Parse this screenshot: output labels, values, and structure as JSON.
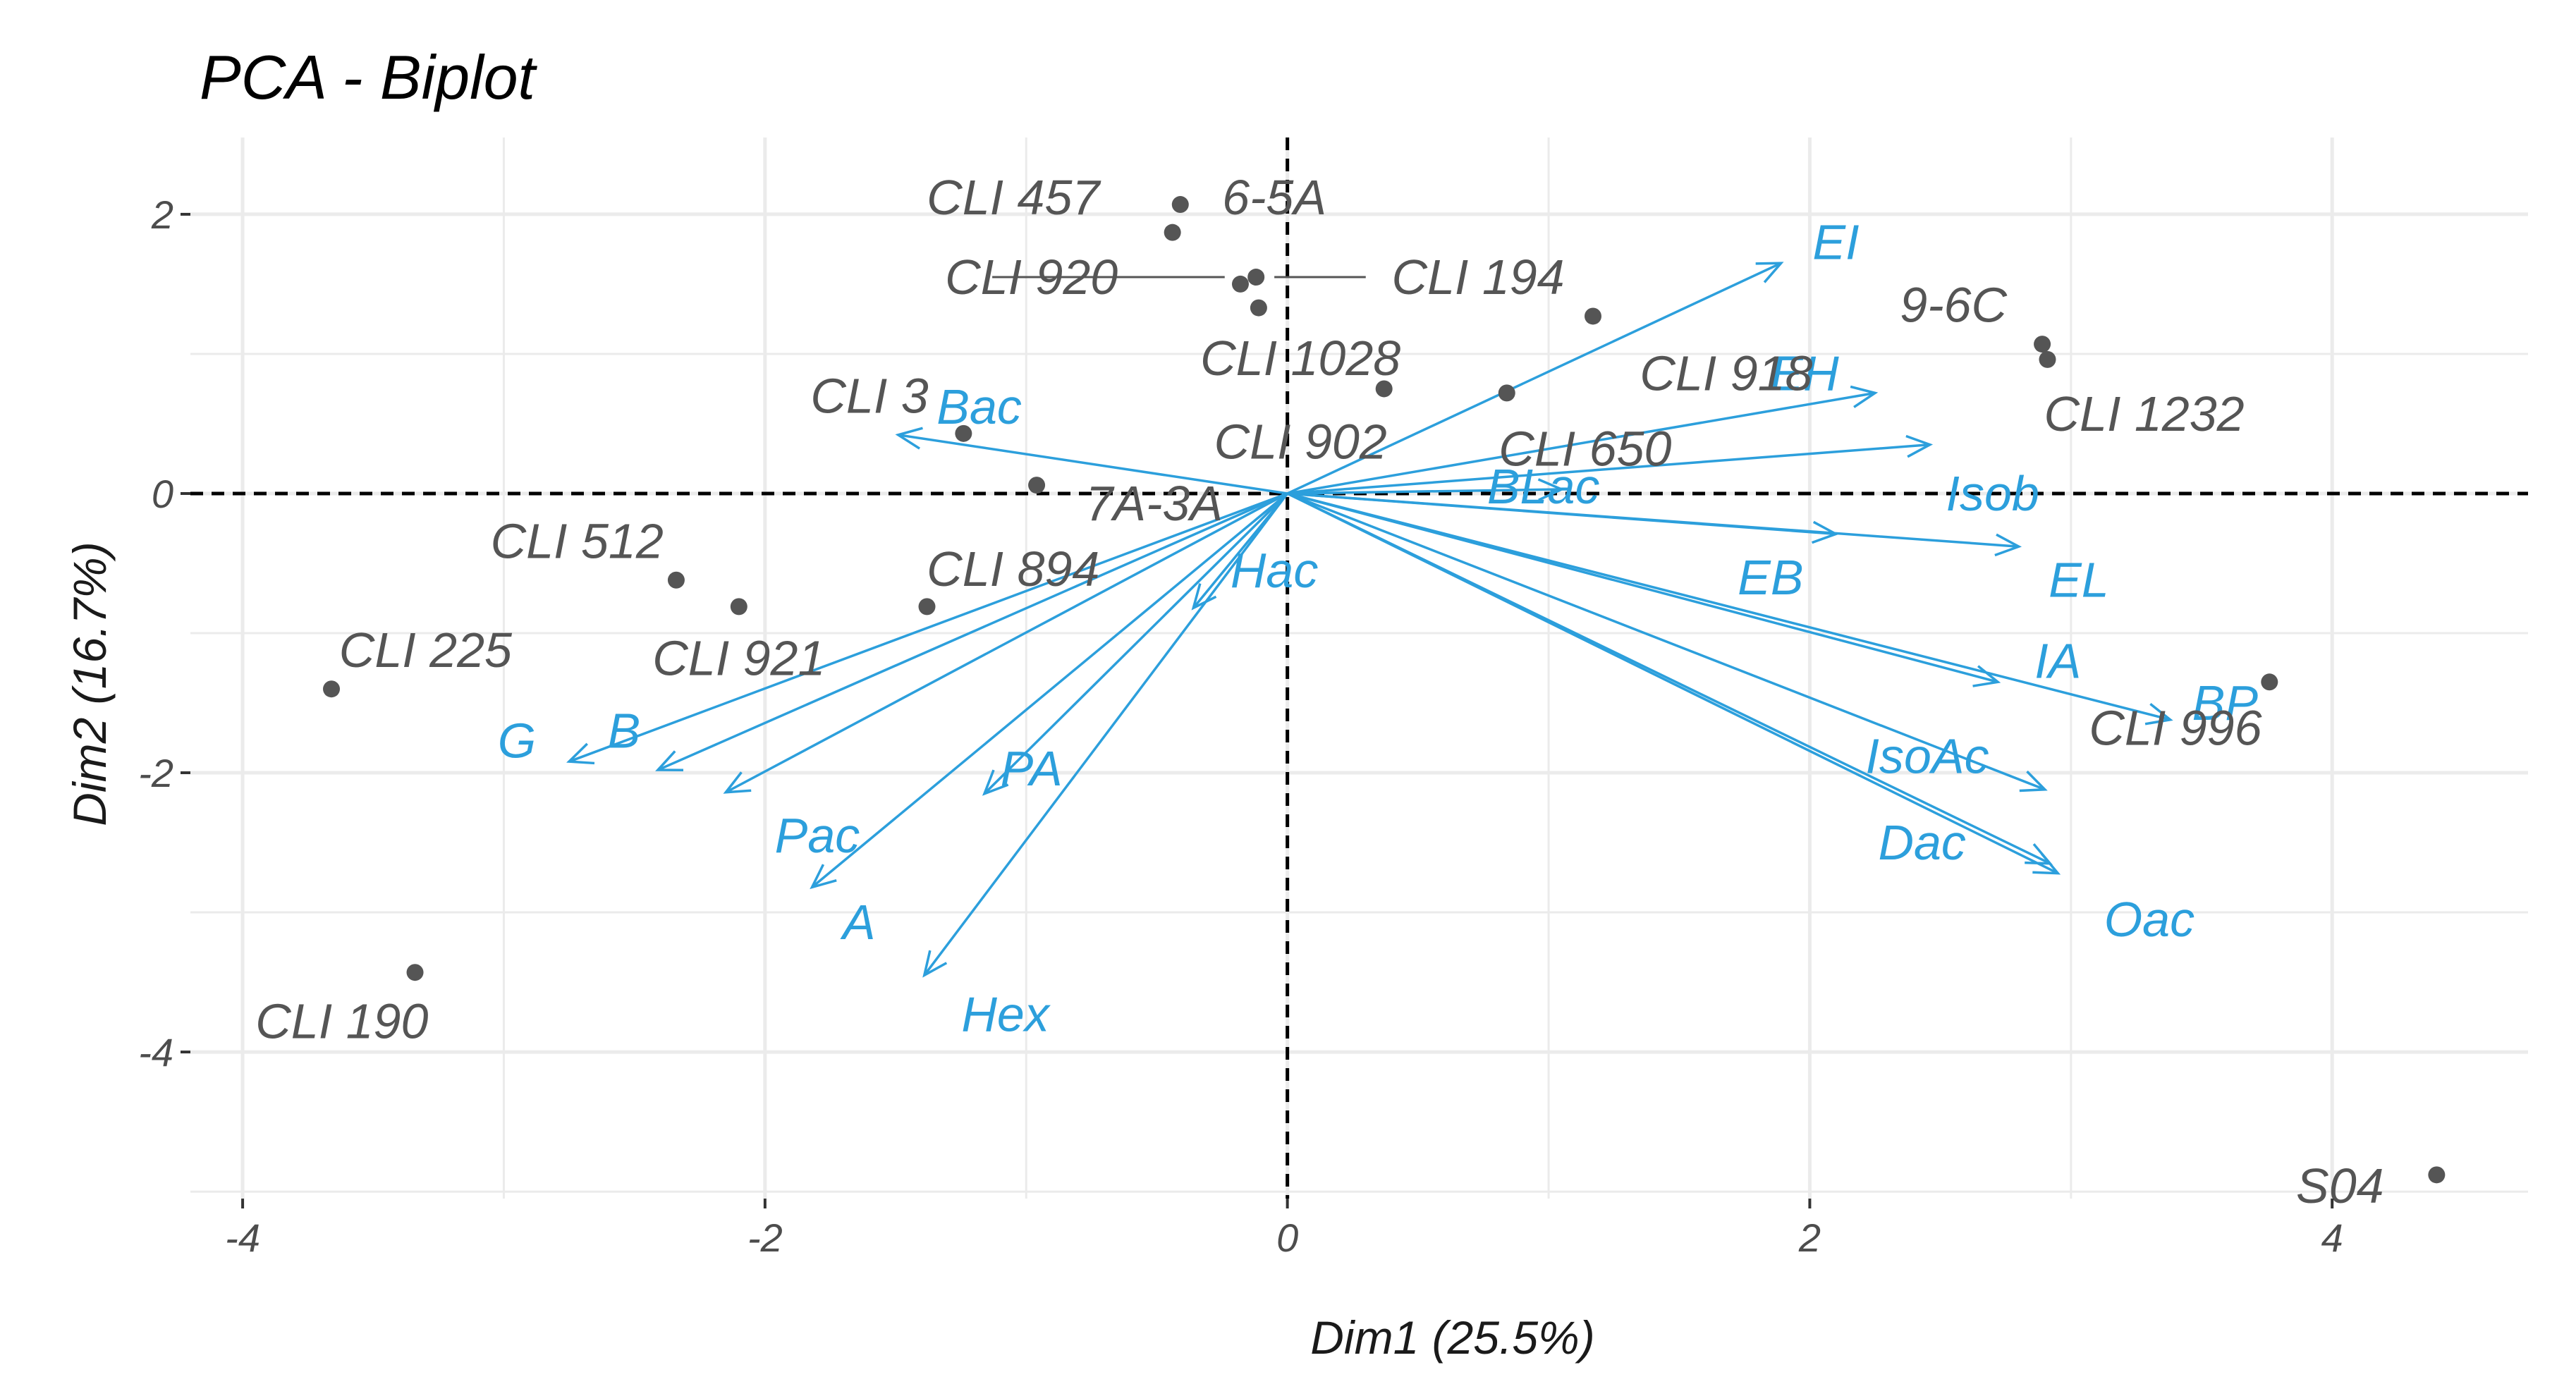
{
  "chart_data": {
    "type": "scatter",
    "title": "PCA - Biplot",
    "xlabel": "Dim1 (25.5%)",
    "ylabel": "Dim2 (16.7%)",
    "xlim": [
      -4.2,
      4.75
    ],
    "ylim": [
      -5.05,
      2.55
    ],
    "x_ticks": [
      -4,
      -2,
      0,
      2,
      4
    ],
    "y_ticks": [
      -4,
      -2,
      0,
      2
    ],
    "x_tick_labels": [
      "-4",
      "-2",
      "0",
      "2",
      "4"
    ],
    "y_tick_labels": [
      "-4",
      "-2",
      "0",
      "2"
    ],
    "grid": true,
    "reference_lines": {
      "x": 0,
      "y": 0,
      "style": "dashed"
    },
    "colors": {
      "individuals": "#555555",
      "variables": "#2c9fdc",
      "grid": "#ebebeb"
    },
    "individuals": [
      {
        "label": "CLI 457",
        "x": -0.44,
        "y": 1.87,
        "lx": -1.05,
        "ly": 2.12
      },
      {
        "label": "6-5A",
        "x": -0.41,
        "y": 2.07,
        "lx": -0.05,
        "ly": 2.12
      },
      {
        "label": "CLI 920",
        "x": -0.18,
        "y": 1.5,
        "lx": -0.98,
        "ly": 1.55
      },
      {
        "label": "CLI 194",
        "x": -0.12,
        "y": 1.55,
        "lx": 0.73,
        "ly": 1.55
      },
      {
        "label": "CLI 1028",
        "x": -0.11,
        "y": 1.33,
        "lx": 0.05,
        "ly": 0.97
      },
      {
        "label": "9-6C",
        "x": 2.89,
        "y": 1.07,
        "lx": 2.55,
        "ly": 1.35
      },
      {
        "label": "CLI 1232",
        "x": 2.91,
        "y": 0.96,
        "lx": 3.28,
        "ly": 0.57
      },
      {
        "label": "CLI 3",
        "x": -1.24,
        "y": 0.43,
        "lx": -1.6,
        "ly": 0.7
      },
      {
        "label": "CLI 902",
        "x": 0.37,
        "y": 0.75,
        "lx": 0.05,
        "ly": 0.37
      },
      {
        "label": "CLI 918",
        "x": 1.17,
        "y": 1.27,
        "lx": 1.68,
        "ly": 0.86
      },
      {
        "label": "CLI 650",
        "x": 0.84,
        "y": 0.72,
        "lx": 1.14,
        "ly": 0.32
      },
      {
        "label": "7A-3A",
        "x": -0.96,
        "y": 0.06,
        "lx": -0.51,
        "ly": -0.07
      },
      {
        "label": "CLI 512",
        "x": -2.34,
        "y": -0.62,
        "lx": -2.72,
        "ly": -0.34
      },
      {
        "label": "CLI 894",
        "x": -1.38,
        "y": -0.81,
        "lx": -1.05,
        "ly": -0.54
      },
      {
        "label": "CLI 921",
        "x": -2.1,
        "y": -0.81,
        "lx": -2.1,
        "ly": -1.18
      },
      {
        "label": "CLI 225",
        "x": -3.66,
        "y": -1.4,
        "lx": -3.3,
        "ly": -1.12
      },
      {
        "label": "CLI 996",
        "x": 3.76,
        "y": -1.35,
        "lx": 3.4,
        "ly": -1.68
      },
      {
        "label": "CLI 190",
        "x": -3.34,
        "y": -3.43,
        "lx": -3.62,
        "ly": -3.78
      },
      {
        "label": "S04",
        "x": 4.4,
        "y": -4.88,
        "lx": 4.03,
        "ly": -4.96
      }
    ],
    "variables": [
      {
        "label": "EI",
        "x": 1.89,
        "y": 1.65,
        "lx": 2.1,
        "ly": 1.8
      },
      {
        "label": "EH",
        "x": 2.25,
        "y": 0.72,
        "lx": 1.98,
        "ly": 0.86
      },
      {
        "label": "Isob",
        "x": 2.46,
        "y": 0.35,
        "lx": 2.7,
        "ly": 0.0
      },
      {
        "label": "Bac",
        "x": -1.49,
        "y": 0.42,
        "lx": -1.18,
        "ly": 0.62
      },
      {
        "label": "BLac",
        "x": 1.05,
        "y": 0.03,
        "lx": 0.98,
        "ly": 0.05
      },
      {
        "label": "EB",
        "x": 2.1,
        "y": -0.29,
        "lx": 1.85,
        "ly": -0.6
      },
      {
        "label": "EL",
        "x": 2.8,
        "y": -0.38,
        "lx": 3.03,
        "ly": -0.62
      },
      {
        "label": "Hac",
        "x": -0.36,
        "y": -0.82,
        "lx": -0.05,
        "ly": -0.55
      },
      {
        "label": "IA",
        "x": 2.72,
        "y": -1.35,
        "lx": 2.95,
        "ly": -1.2
      },
      {
        "label": "BP",
        "x": 3.38,
        "y": -1.62,
        "lx": 3.59,
        "ly": -1.5
      },
      {
        "label": "IsoAc",
        "x": 2.9,
        "y": -2.12,
        "lx": 2.45,
        "ly": -1.88
      },
      {
        "label": "Dac",
        "x": 2.92,
        "y": -2.65,
        "lx": 2.43,
        "ly": -2.5
      },
      {
        "label": "Oac",
        "x": 2.95,
        "y": -2.72,
        "lx": 3.3,
        "ly": -3.05
      },
      {
        "label": "G",
        "x": -2.75,
        "y": -1.92,
        "lx": -2.95,
        "ly": -1.77
      },
      {
        "label": "B",
        "x": -2.41,
        "y": -1.98,
        "lx": -2.54,
        "ly": -1.7
      },
      {
        "label": "PA",
        "x": -1.16,
        "y": -2.15,
        "lx": -0.98,
        "ly": -1.97
      },
      {
        "label": "Pac",
        "x": -2.15,
        "y": -2.14,
        "lx": -1.8,
        "ly": -2.45
      },
      {
        "label": "A",
        "x": -1.82,
        "y": -2.82,
        "lx": -1.64,
        "ly": -3.07
      },
      {
        "label": "Hex",
        "x": -1.39,
        "y": -3.45,
        "lx": -1.08,
        "ly": -3.73
      }
    ]
  }
}
